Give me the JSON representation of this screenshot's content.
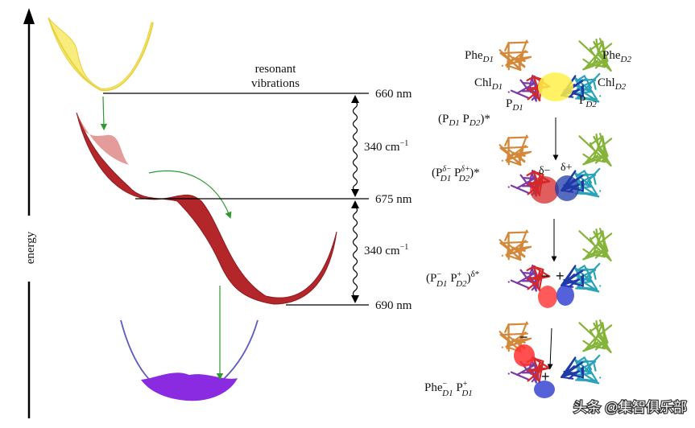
{
  "axis": {
    "label": "energy"
  },
  "levels": {
    "top": "660 nm",
    "middle": "675 nm",
    "bottom": "690 nm",
    "resonant_line1": "resonant",
    "resonant_line2": "vibrations"
  },
  "gaps": {
    "upper": {
      "num": "340 cm",
      "sup": "−1"
    },
    "lower": {
      "num": "340 cm",
      "sup": "−1"
    }
  },
  "pigments": {
    "phe_d1": {
      "base": "Phe",
      "sub": "D1"
    },
    "phe_d2": {
      "base": "Phe",
      "sub": "D2"
    },
    "chl_d1": {
      "base": "Chl",
      "sub": "D1"
    },
    "chl_d2": {
      "base": "Chl",
      "sub": "D2"
    },
    "p_d1": {
      "base": "P",
      "sub": "D1"
    },
    "p_d2": {
      "base": "P",
      "sub": "D2"
    }
  },
  "states": {
    "s1": {
      "text": "(P",
      "sub1": "D1",
      "mid": " P",
      "sub2": "D2",
      "end": ")*"
    },
    "s2": {
      "text": "(P",
      "sup1": "δ−",
      "sub1": "D1",
      "mid": " P",
      "sup2": "δ+",
      "sub2": "D2",
      "end": ")*"
    },
    "s3": {
      "text": "(P",
      "sup1": "−",
      "sub1": "D1",
      "mid": " P",
      "sup2": "+",
      "sub2": "D2",
      "end": ")",
      "tail": "δ*"
    },
    "s4": {
      "text": "Phe",
      "sup1": "−",
      "sub1": "D1",
      "mid": " P",
      "sup2": "+",
      "sub2": "D1"
    }
  },
  "charges": {
    "s2_minus": "δ−",
    "s2_plus": "δ+",
    "s3_minus": "−",
    "s3_plus": "+",
    "s4_minus": "−",
    "s4_plus": "+"
  },
  "watermark": {
    "text": "头条 @集智俱乐部"
  },
  "colors": {
    "yellow": "#f7ec7c",
    "red": "#b3262a",
    "purple": "#8a2be2",
    "green": "#2e9b2e",
    "orange": "#d4883a",
    "olive": "#86b43a",
    "violet": "#7b3aa6",
    "teal": "#2aa3b8",
    "blue": "#1f3aa8",
    "pred": "#d62828"
  }
}
